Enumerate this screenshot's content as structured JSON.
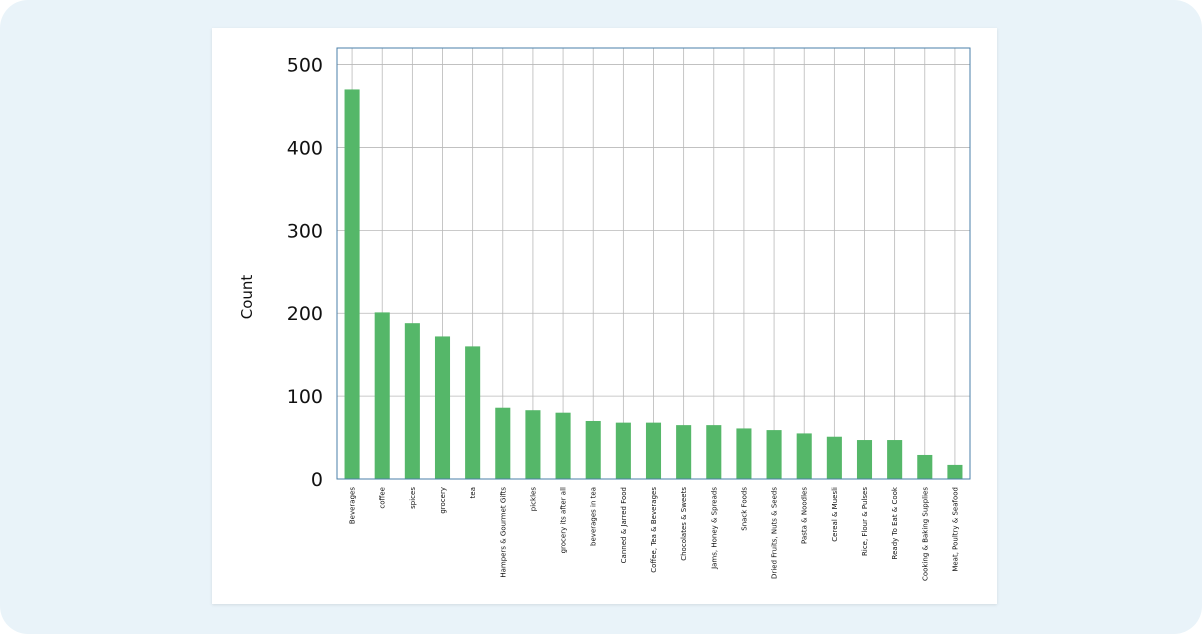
{
  "chart_data": {
    "type": "bar",
    "title": "",
    "xlabel": "",
    "ylabel": "Count",
    "ylim": [
      0,
      520
    ],
    "yticks": [
      0,
      100,
      200,
      300,
      400,
      500
    ],
    "grid": true,
    "bar_color": "#55b769",
    "categories": [
      "Beverages",
      "coffee",
      "spices",
      "grocery",
      "tea",
      "Hampers & Gourmet Gifts",
      "pickles",
      "grocery its after all",
      "beverages in tea",
      "Canned & Jarred Food",
      "Coffee, Tea & Beverages",
      "Chocolates & Sweets",
      "Jams, Honey & Spreads",
      "Snack Foods",
      "Dried Fruits, Nuts & Seeds",
      "Pasta & Noodles",
      "Cereal & Muesli",
      "Rice, Flour & Pulses",
      "Ready To Eat & Cook",
      "Cooking & Baking Supplies",
      "Meat, Poultry & Seafood"
    ],
    "values": [
      470,
      201,
      188,
      172,
      160,
      86,
      83,
      80,
      70,
      68,
      68,
      65,
      65,
      61,
      59,
      55,
      51,
      47,
      47,
      29,
      17
    ]
  },
  "colors": {
    "page_background": "#e9f3f9",
    "card_background": "#ffffff",
    "plot_border": "#4a7fa8",
    "grid": "#b8b8b8"
  }
}
